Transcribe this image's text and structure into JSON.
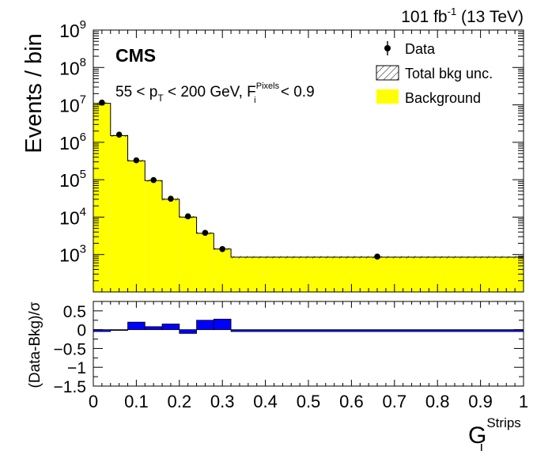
{
  "chart_data": [
    {
      "type": "histogram",
      "panel": "main",
      "title": "101 fb-1 (13 TeV)",
      "lumi_value": "101 fb",
      "lumi_sup": "-1",
      "lumi_energy": " (13 TeV)",
      "experiment_label": "CMS",
      "selection": {
        "part1": "55 < p",
        "sub1": "T",
        "part2": " < 200 GeV, F",
        "sup2": "Pixels",
        "sub2": "i",
        "part3": " < 0.9"
      },
      "ylabel": "Events / bin",
      "yscale": "log",
      "ylim": [
        100,
        1000000000
      ],
      "y_ticks": [
        {
          "value": 1000,
          "base": "10",
          "exp": "3"
        },
        {
          "value": 10000,
          "base": "10",
          "exp": "4"
        },
        {
          "value": 100000,
          "base": "10",
          "exp": "5"
        },
        {
          "value": 1000000,
          "base": "10",
          "exp": "6"
        },
        {
          "value": 10000000,
          "base": "10",
          "exp": "7"
        },
        {
          "value": 100000000,
          "base": "10",
          "exp": "8"
        },
        {
          "value": 1000000000,
          "base": "10",
          "exp": "9"
        }
      ],
      "xlim": [
        0,
        1
      ],
      "bin_edges": [
        0,
        0.04,
        0.08,
        0.12,
        0.16,
        0.2,
        0.24,
        0.28,
        0.32,
        1.0
      ],
      "series": [
        {
          "name": "Background",
          "kind": "filled_histogram",
          "color": "#ffff00",
          "values": [
            11000000,
            1500000,
            320000,
            95000,
            30000,
            10000,
            3700,
            1400,
            850
          ]
        }
      ],
      "data_points": {
        "name": "Data",
        "x": [
          0.02,
          0.06,
          0.1,
          0.14,
          0.18,
          0.22,
          0.26,
          0.3,
          0.66
        ],
        "y": [
          11500000,
          1600000,
          330000,
          98000,
          31000,
          10500,
          3800,
          1400,
          880
        ]
      },
      "legend": {
        "position": "top-right",
        "entries": [
          {
            "label": "Data",
            "kind": "marker"
          },
          {
            "label": "Total bkg unc.",
            "kind": "hatched"
          },
          {
            "label": "Background",
            "kind": "fill",
            "color": "#ffff00"
          }
        ]
      }
    },
    {
      "type": "histogram",
      "panel": "ratio",
      "ylabel": "(Data-Bkg)/σ",
      "ylim": [
        -1.5,
        0.75
      ],
      "y_ticks": [
        {
          "value": 0.5,
          "label": "0.5"
        },
        {
          "value": 0,
          "label": "0"
        },
        {
          "value": -0.5,
          "label": "−0.5"
        },
        {
          "value": -1,
          "label": "−1"
        },
        {
          "value": -1.5,
          "label": "−1.5"
        }
      ],
      "xlabel_base": "G",
      "xlabel_sup": "Strips",
      "xlabel_sub": "i",
      "xlim": [
        0,
        1
      ],
      "x_ticks": [
        "0",
        "0.1",
        "0.2",
        "0.3",
        "0.4",
        "0.5",
        "0.6",
        "0.7",
        "0.8",
        "0.9",
        "1"
      ],
      "bin_edges": [
        0,
        0.04,
        0.08,
        0.12,
        0.16,
        0.2,
        0.24,
        0.28,
        0.32,
        1.0
      ],
      "series": [
        {
          "name": "Pull",
          "color": "#0000ff",
          "values": [
            -0.05,
            -0.02,
            0.2,
            0.08,
            0.15,
            -0.1,
            0.25,
            0.28,
            -0.05
          ]
        }
      ]
    }
  ]
}
